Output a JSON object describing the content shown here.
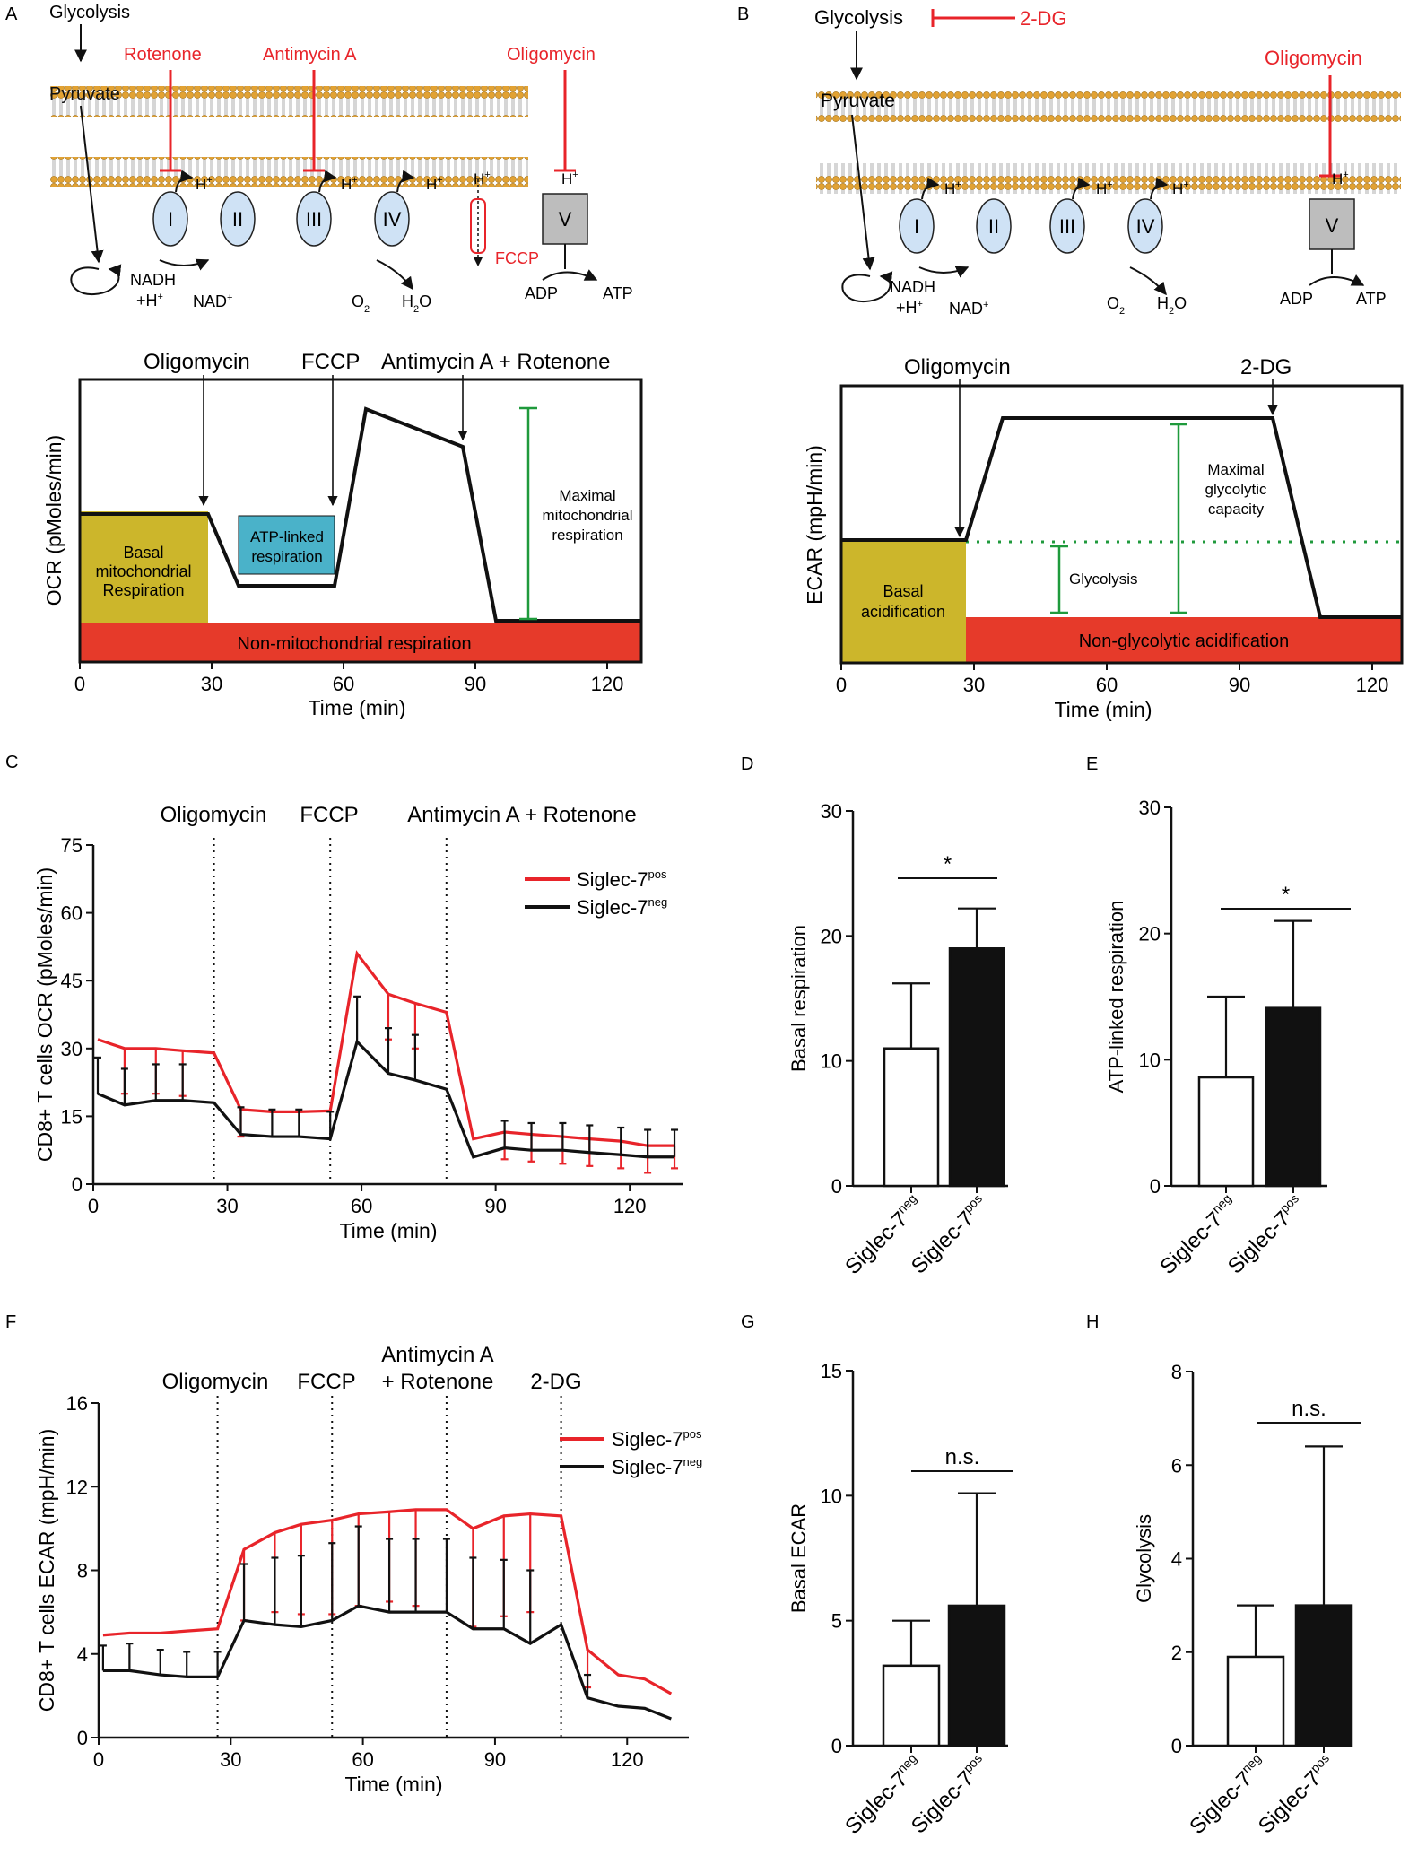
{
  "colors": {
    "red": "#e8242a",
    "black": "#111111",
    "green": "#1f9a3c",
    "gold": "#ccb62b",
    "teal": "#4ab2c9",
    "boxred": "#e63a2a",
    "membrane": "#e2a233",
    "protein": "#cfe2f5",
    "gray": "#bdbdbd"
  },
  "panelA": {
    "letter": "A",
    "top": {
      "glycolysis": "Glycolysis",
      "pyruvate": "Pyruvate",
      "rotenone": "Rotenone",
      "antimycin": "Antimycin A",
      "oligomycin": "Oligomycin",
      "fccp": "FCCP",
      "c1": "I",
      "c2": "II",
      "c3": "III",
      "c4": "IV",
      "c5": "V",
      "hplus": "H",
      "plus": "+",
      "nadh": "NADH",
      "hplus2": "+H",
      "nad": "NAD",
      "o2": "O",
      "o2sub": "2",
      "h2o": "H",
      "h2osub": "2",
      "h2oO": "O",
      "adp": "ADP",
      "atp": "ATP"
    },
    "schematic": {
      "ylabel": "OCR (pMoles/min)",
      "xlabel": "Time (min)",
      "ticks": [
        "0",
        "30",
        "60",
        "90",
        "120"
      ],
      "inj1": "Oligomycin",
      "inj2": "FCCP",
      "inj3": "Antimycin A + Rotenone",
      "basal": [
        "Basal",
        "mitochondrial",
        "Respiration"
      ],
      "atp": [
        "ATP-linked",
        "respiration"
      ],
      "maximal": [
        "Maximal",
        "mitochondrial",
        "respiration"
      ],
      "nonmito": "Non-mitochondrial respiration"
    }
  },
  "panelB": {
    "letter": "B",
    "top": {
      "glycolysis": "Glycolysis",
      "twodg": "2-DG",
      "pyruvate": "Pyruvate",
      "oligomycin": "Oligomycin",
      "c1": "I",
      "c2": "II",
      "c3": "III",
      "c4": "IV",
      "c5": "V",
      "hplus": "H",
      "plus": "+",
      "nadh": "NADH",
      "hplus2": "+H",
      "nad": "NAD",
      "o2": "O",
      "o2sub": "2",
      "h2o": "H",
      "h2osub": "2",
      "h2oO": "O",
      "adp": "ADP",
      "atp": "ATP"
    },
    "schematic": {
      "ylabel": "ECAR (mpH/min)",
      "xlabel": "Time (min)",
      "ticks": [
        "0",
        "30",
        "60",
        "90",
        "120"
      ],
      "inj1": "Oligomycin",
      "inj2": "2-DG",
      "basal": [
        "Basal",
        "acidification"
      ],
      "maximal": [
        "Maximal",
        "glycolytic",
        "capacity"
      ],
      "glycolysis": "Glycolysis",
      "nonglyco": "Non-glycolytic acidification"
    }
  },
  "chart_data": [
    {
      "panel": "C",
      "type": "line",
      "title": "",
      "ylabel": "CD8+ T cells OCR (pMoles/min)",
      "xlabel": "Time (min)",
      "xlim": [
        0,
        132
      ],
      "ylim": [
        0,
        75
      ],
      "xticks": [
        "0",
        "30",
        "60",
        "90",
        "120"
      ],
      "yticks": [
        "0",
        "15",
        "30",
        "45",
        "60",
        "75"
      ],
      "injections": [
        {
          "label": "Oligomycin",
          "x": 27
        },
        {
          "label": "FCCP",
          "x": 53
        },
        {
          "label": "Antimycin A + Rotenone",
          "x": 79
        }
      ],
      "legend": [
        "Siglec-7",
        "Siglec-7"
      ],
      "legend_sup": [
        "pos",
        "neg"
      ],
      "series": [
        {
          "name": "Siglec-7pos",
          "color": "red",
          "x": [
            1,
            7,
            14,
            20,
            27,
            33,
            40,
            46,
            53,
            59,
            66,
            72,
            79,
            85,
            92,
            98,
            105,
            111,
            118,
            124,
            130
          ],
          "y": [
            32,
            30,
            30,
            29.5,
            29,
            16.5,
            16,
            16,
            16.2,
            51,
            42,
            40,
            38,
            10,
            11.5,
            11,
            10.5,
            10,
            9.5,
            8.5,
            8.5
          ],
          "err": [
            0,
            10,
            10,
            10,
            0,
            6,
            0,
            0,
            0,
            0,
            10,
            10,
            0,
            0,
            6,
            6,
            6,
            6,
            6,
            6,
            5
          ]
        },
        {
          "name": "Siglec-7neg",
          "color": "black",
          "x": [
            1,
            7,
            14,
            20,
            27,
            33,
            40,
            46,
            53,
            59,
            66,
            72,
            79,
            85,
            92,
            98,
            105,
            111,
            118,
            124,
            130
          ],
          "y": [
            20,
            17.5,
            18.5,
            18.5,
            18,
            11,
            10.5,
            10.5,
            10,
            31.5,
            24.5,
            23,
            21,
            6,
            8,
            7.5,
            7.5,
            7,
            6.5,
            6,
            6
          ],
          "err": [
            8,
            8,
            8,
            8,
            0,
            6,
            6,
            6,
            6,
            10,
            10,
            10,
            0,
            0,
            6,
            6,
            6,
            6,
            6,
            6,
            6
          ]
        }
      ]
    },
    {
      "panel": "D",
      "type": "bar",
      "ylabel": "Basal respiration",
      "ylim": [
        0,
        30
      ],
      "yticks": [
        "0",
        "10",
        "20",
        "30"
      ],
      "categories": [
        "Siglec-7",
        "Siglec-7"
      ],
      "cat_sup": [
        "neg",
        "pos"
      ],
      "values": [
        11,
        19
      ],
      "errors": [
        5.2,
        3.2
      ],
      "significance": "*"
    },
    {
      "panel": "E",
      "type": "bar",
      "ylabel": "ATP-linked respiration",
      "ylim": [
        0,
        30
      ],
      "yticks": [
        "0",
        "10",
        "20",
        "30"
      ],
      "categories": [
        "Siglec-7",
        "Siglec-7"
      ],
      "cat_sup": [
        "neg",
        "pos"
      ],
      "values": [
        8.6,
        14.1
      ],
      "errors": [
        6.4,
        6.9
      ],
      "significance": "*"
    },
    {
      "panel": "F",
      "type": "line",
      "title": "",
      "ylabel": "CD8+ T cells ECAR (mpH/min)",
      "xlabel": "Time (min)",
      "xlim": [
        0,
        134
      ],
      "ylim": [
        0,
        16
      ],
      "xticks": [
        "0",
        "30",
        "60",
        "90",
        "120"
      ],
      "yticks": [
        "0",
        "4",
        "8",
        "12",
        "16"
      ],
      "injections": [
        {
          "label": "Oligomycin",
          "x": 27
        },
        {
          "label": "FCCP",
          "x": 53
        },
        {
          "label": "Antimycin A + Rotenone",
          "x": 79
        },
        {
          "label": "2-DG",
          "x": 105
        }
      ],
      "legend": [
        "Siglec-7",
        "Siglec-7"
      ],
      "legend_sup": [
        "pos",
        "neg"
      ],
      "series": [
        {
          "name": "Siglec-7pos",
          "color": "red",
          "x": [
            1,
            7,
            14,
            20,
            27,
            33,
            40,
            46,
            53,
            59,
            66,
            72,
            79,
            85,
            92,
            98,
            105,
            111,
            118,
            124,
            130
          ],
          "y": [
            4.9,
            5,
            5,
            5.1,
            5.2,
            9,
            9.8,
            10.2,
            10.4,
            10.7,
            10.8,
            10.9,
            10.9,
            10,
            10.6,
            10.7,
            10.6,
            4.2,
            3,
            2.8,
            2.1
          ],
          "err": [
            0,
            0,
            0,
            0,
            0,
            3.4,
            3.8,
            4.3,
            4.5,
            4.4,
            4.3,
            4.6,
            0,
            4.7,
            4.8,
            4.7,
            0,
            1.8,
            0,
            0,
            0
          ]
        },
        {
          "name": "Siglec-7neg",
          "color": "black",
          "x": [
            1,
            7,
            14,
            20,
            27,
            33,
            40,
            46,
            53,
            59,
            66,
            72,
            79,
            85,
            92,
            98,
            105,
            111,
            118,
            124,
            130
          ],
          "y": [
            3.2,
            3.2,
            3,
            2.9,
            2.9,
            5.6,
            5.4,
            5.3,
            5.6,
            6.3,
            6,
            6,
            6,
            5.2,
            5.2,
            4.5,
            5.4,
            1.9,
            1.5,
            1.4,
            0.9
          ],
          "err": [
            1.2,
            1.3,
            1.2,
            1.2,
            1.2,
            2.7,
            3.2,
            3.4,
            3.7,
            3.8,
            3.5,
            3.5,
            3.5,
            3.4,
            3.3,
            3.5,
            0,
            1.1,
            0,
            0,
            0
          ]
        }
      ]
    },
    {
      "panel": "G",
      "type": "bar",
      "ylabel": "Basal ECAR",
      "ylim": [
        0,
        15
      ],
      "yticks": [
        "0",
        "5",
        "10",
        "15"
      ],
      "categories": [
        "Siglec-7",
        "Siglec-7"
      ],
      "cat_sup": [
        "neg",
        "pos"
      ],
      "values": [
        3.2,
        5.6
      ],
      "errors": [
        1.8,
        4.5
      ],
      "significance": "n.s."
    },
    {
      "panel": "H",
      "type": "bar",
      "ylabel": "Glycolysis",
      "ylim": [
        0,
        8
      ],
      "yticks": [
        "0",
        "2",
        "4",
        "6",
        "8"
      ],
      "categories": [
        "Siglec-7",
        "Siglec-7"
      ],
      "cat_sup": [
        "neg",
        "pos"
      ],
      "values": [
        1.9,
        3.0
      ],
      "errors": [
        1.1,
        3.4
      ],
      "significance": "n.s."
    }
  ]
}
